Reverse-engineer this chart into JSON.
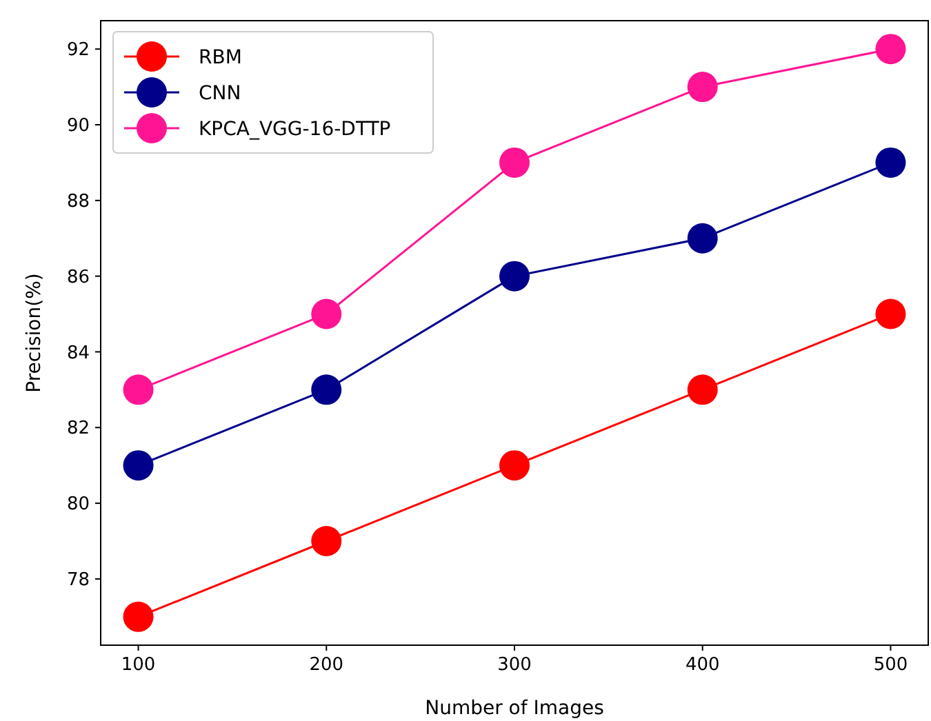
{
  "chart_data": {
    "type": "line",
    "xlabel": "Number of Images",
    "ylabel": "Precision(%)",
    "x": [
      100,
      200,
      300,
      400,
      500
    ],
    "series": [
      {
        "name": "RBM",
        "color": "#ff0000",
        "values": [
          77,
          79,
          81,
          83,
          85
        ]
      },
      {
        "name": "CNN",
        "color": "#00008b",
        "values": [
          81,
          83,
          86,
          87,
          89
        ]
      },
      {
        "name": "KPCA_VGG-16-DTTP",
        "color": "#ff1493",
        "values": [
          83,
          85,
          89,
          91,
          92
        ]
      }
    ],
    "xlim": [
      80,
      520
    ],
    "ylim": [
      76.25,
      92.75
    ],
    "xticks": [
      100,
      200,
      300,
      400,
      500
    ],
    "yticks": [
      78,
      80,
      82,
      84,
      86,
      88,
      90,
      92
    ],
    "grid": false,
    "legend": "top left",
    "marker": "circle",
    "line_style": "solid"
  }
}
